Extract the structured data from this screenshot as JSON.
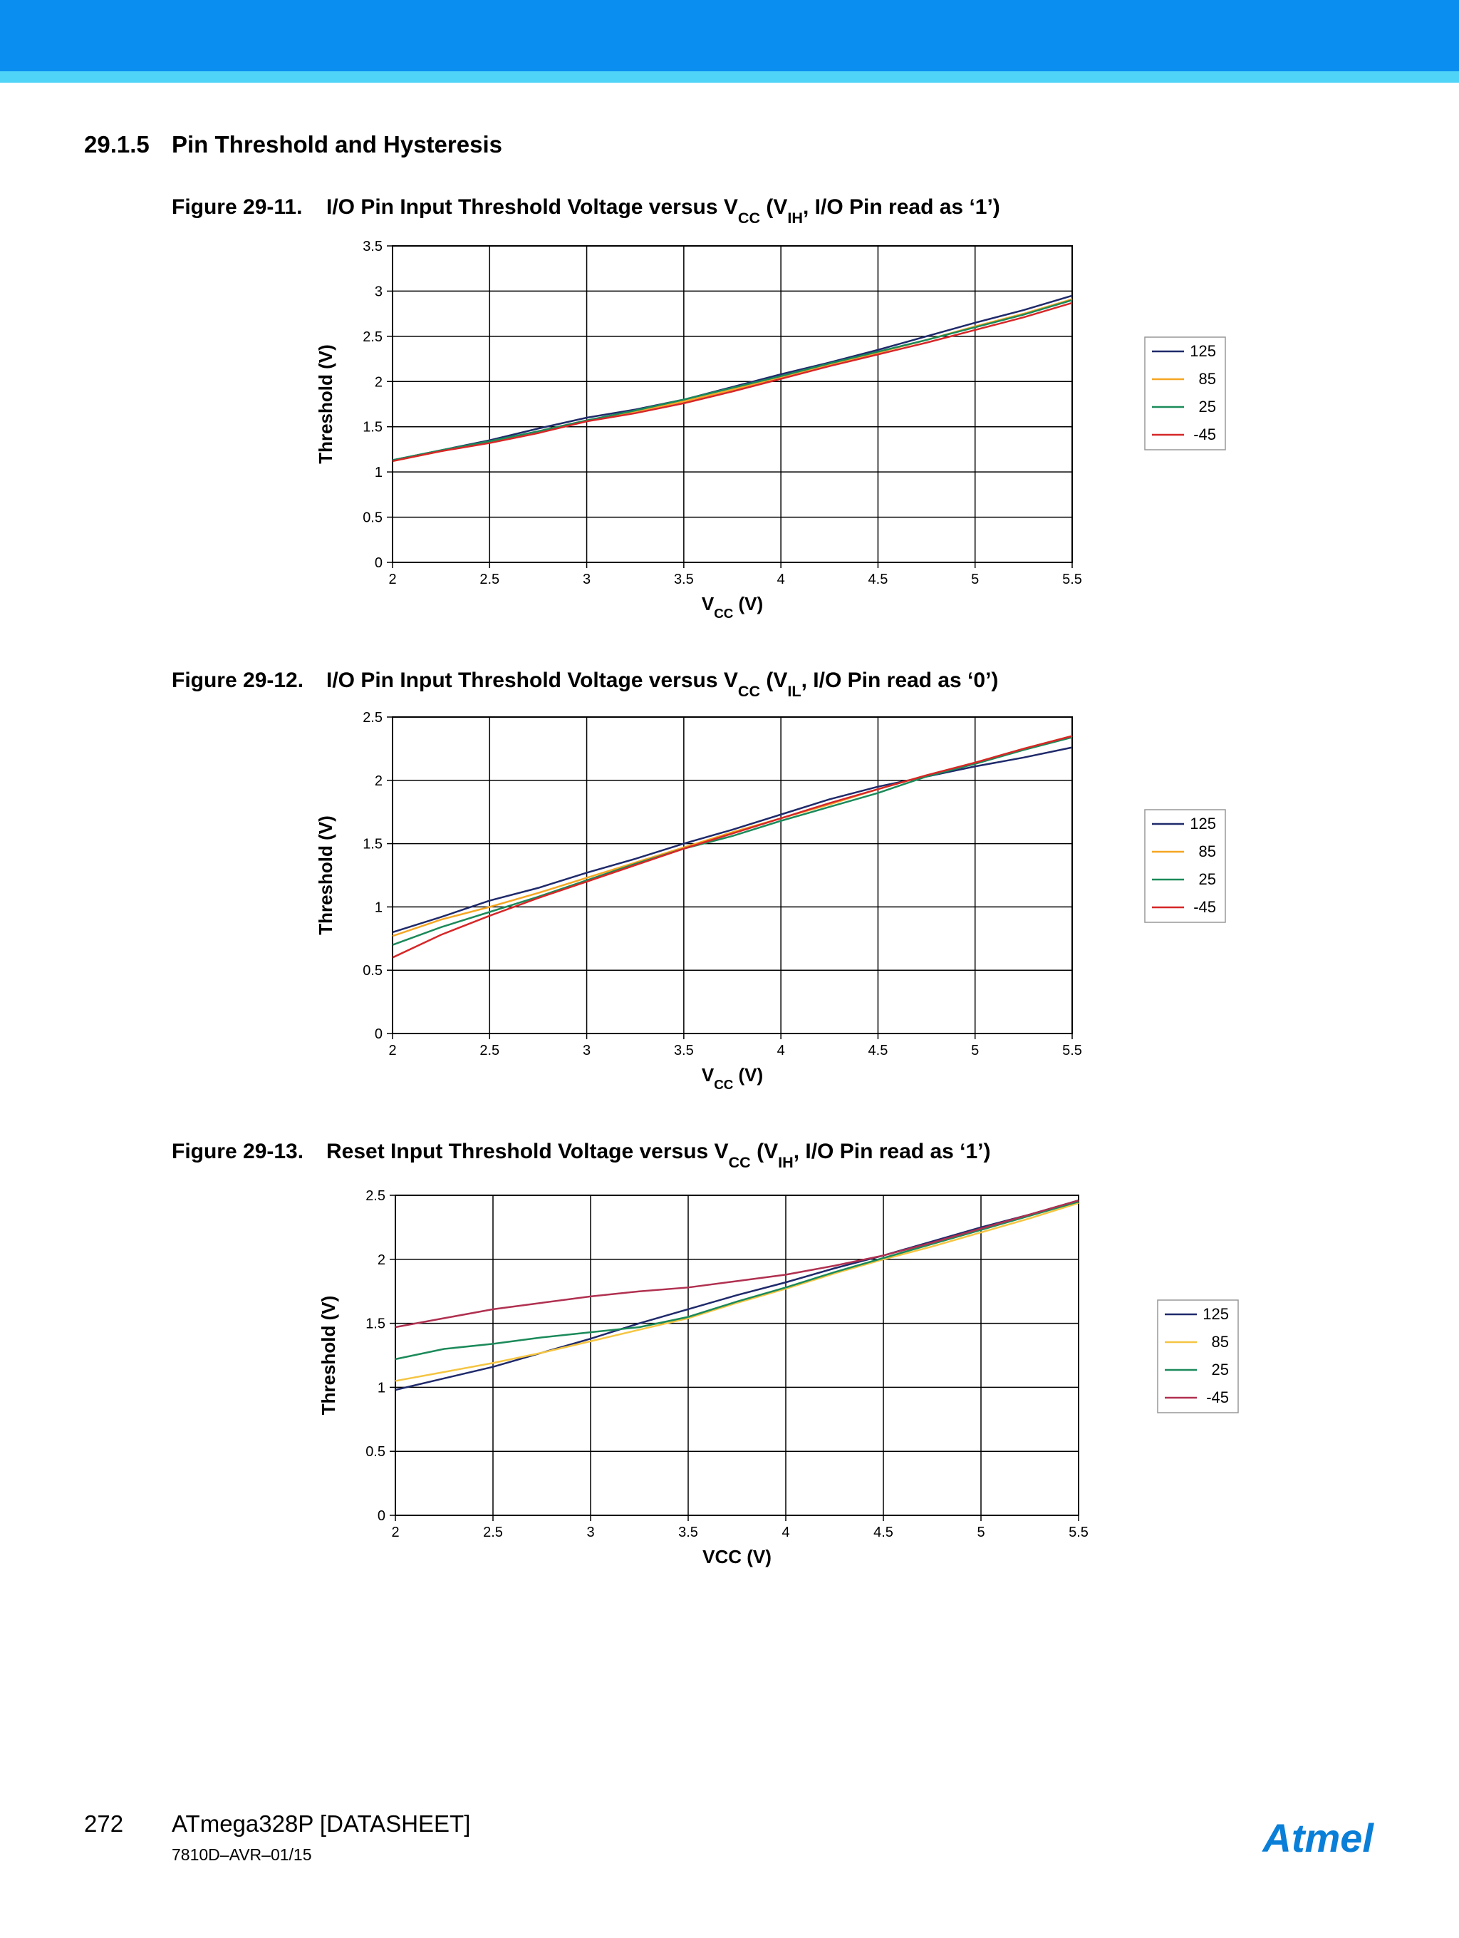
{
  "section": {
    "number": "29.1.5",
    "title": "Pin Threshold and Hysteresis"
  },
  "chart_data": [
    {
      "type": "line",
      "figure": "Figure 29-11.",
      "title_parts": [
        "I/O Pin Input Threshold Voltage versus V",
        "CC",
        " (V",
        "IH",
        ", I/O Pin read as ‘1’)"
      ],
      "xlabel_parts": [
        "V",
        "CC",
        " (V)"
      ],
      "ylabel": "Threshold (V)",
      "x": [
        2,
        2.25,
        2.5,
        2.75,
        3,
        3.25,
        3.5,
        3.75,
        4,
        4.25,
        4.5,
        4.75,
        5,
        5.25,
        5.5
      ],
      "series": [
        {
          "name": "125",
          "color": "#1f2a6b",
          "values": [
            1.13,
            1.24,
            1.35,
            1.48,
            1.6,
            1.69,
            1.8,
            1.94,
            2.08,
            2.21,
            2.35,
            2.5,
            2.65,
            2.79,
            2.95
          ]
        },
        {
          "name": "85",
          "color": "#f5a623",
          "values": [
            1.12,
            1.23,
            1.33,
            1.45,
            1.57,
            1.67,
            1.78,
            1.91,
            2.05,
            2.19,
            2.32,
            2.46,
            2.61,
            2.75,
            2.91
          ]
        },
        {
          "name": "25",
          "color": "#1b8a5a",
          "values": [
            1.13,
            1.24,
            1.34,
            1.45,
            1.57,
            1.68,
            1.8,
            1.93,
            2.06,
            2.2,
            2.33,
            2.46,
            2.6,
            2.74,
            2.9
          ]
        },
        {
          "name": "-45",
          "color": "#d62728",
          "values": [
            1.12,
            1.23,
            1.32,
            1.43,
            1.56,
            1.65,
            1.76,
            1.89,
            2.03,
            2.17,
            2.3,
            2.43,
            2.57,
            2.71,
            2.87
          ]
        }
      ],
      "xlim": [
        2,
        5.5
      ],
      "xticks": [
        2,
        2.5,
        3,
        3.5,
        4,
        4.5,
        5,
        5.5
      ],
      "ylim": [
        0,
        3.5
      ],
      "yticks": [
        0,
        0.5,
        1,
        1.5,
        2,
        2.5,
        3,
        3.5
      ],
      "grid": true,
      "legend": "right"
    },
    {
      "type": "line",
      "figure": "Figure 29-12.",
      "title_parts": [
        "I/O Pin Input Threshold Voltage versus V",
        "CC",
        " (V",
        "IL",
        ", I/O Pin read as ‘0’)"
      ],
      "xlabel_parts": [
        "V",
        "CC",
        " (V)"
      ],
      "ylabel": "Threshold (V)",
      "x": [
        2,
        2.25,
        2.5,
        2.75,
        3,
        3.25,
        3.5,
        3.75,
        4,
        4.25,
        4.5,
        4.75,
        5,
        5.25,
        5.5
      ],
      "series": [
        {
          "name": "125",
          "color": "#1f2a6b",
          "values": [
            0.8,
            0.92,
            1.05,
            1.15,
            1.27,
            1.38,
            1.5,
            1.61,
            1.73,
            1.85,
            1.95,
            2.03,
            2.11,
            2.18,
            2.26
          ]
        },
        {
          "name": "85",
          "color": "#f5a623",
          "values": [
            0.77,
            0.9,
            1.0,
            1.11,
            1.23,
            1.35,
            1.47,
            1.59,
            1.7,
            1.81,
            1.93,
            2.04,
            2.14,
            2.25,
            2.35
          ]
        },
        {
          "name": "25",
          "color": "#1b8a5a",
          "values": [
            0.7,
            0.84,
            0.96,
            1.08,
            1.21,
            1.34,
            1.46,
            1.56,
            1.68,
            1.79,
            1.9,
            2.03,
            2.13,
            2.24,
            2.34
          ]
        },
        {
          "name": "-45",
          "color": "#d62728",
          "values": [
            0.6,
            0.78,
            0.93,
            1.07,
            1.2,
            1.33,
            1.46,
            1.58,
            1.7,
            1.82,
            1.93,
            2.04,
            2.14,
            2.25,
            2.35
          ]
        }
      ],
      "xlim": [
        2,
        5.5
      ],
      "xticks": [
        2,
        2.5,
        3,
        3.5,
        4,
        4.5,
        5,
        5.5
      ],
      "ylim": [
        0,
        2.5
      ],
      "yticks": [
        0,
        0.5,
        1,
        1.5,
        2,
        2.5
      ],
      "grid": true,
      "legend": "right"
    },
    {
      "type": "line",
      "figure": "Figure 29-13.",
      "title_parts": [
        "Reset Input Threshold Voltage versus V",
        "CC",
        " (V",
        "IH",
        ", I/O Pin read as ‘1’)"
      ],
      "xlabel_parts": [
        "VCC (V)"
      ],
      "ylabel": "Threshold (V)",
      "x": [
        2,
        2.25,
        2.5,
        2.75,
        3,
        3.25,
        3.5,
        3.75,
        4,
        4.25,
        4.5,
        4.75,
        5,
        5.25,
        5.5
      ],
      "series": [
        {
          "name": "125",
          "color": "#1f2a6b",
          "values": [
            0.98,
            1.07,
            1.16,
            1.27,
            1.38,
            1.5,
            1.61,
            1.72,
            1.82,
            1.93,
            2.03,
            2.14,
            2.25,
            2.35,
            2.46
          ]
        },
        {
          "name": "85",
          "color": "#f5c542",
          "values": [
            1.05,
            1.12,
            1.19,
            1.27,
            1.36,
            1.45,
            1.54,
            1.66,
            1.77,
            1.89,
            2.0,
            2.1,
            2.21,
            2.32,
            2.44
          ]
        },
        {
          "name": "25",
          "color": "#1b8a5a",
          "values": [
            1.22,
            1.3,
            1.34,
            1.39,
            1.43,
            1.47,
            1.55,
            1.67,
            1.78,
            1.9,
            2.01,
            2.12,
            2.23,
            2.34,
            2.45
          ]
        },
        {
          "name": "-45",
          "color": "#b03050",
          "values": [
            1.47,
            1.54,
            1.61,
            1.66,
            1.71,
            1.75,
            1.78,
            1.83,
            1.88,
            1.95,
            2.03,
            2.13,
            2.24,
            2.35,
            2.46
          ]
        }
      ],
      "xlim": [
        2,
        5.5
      ],
      "xticks": [
        2,
        2.5,
        3,
        3.5,
        4,
        4.5,
        5,
        5.5
      ],
      "ylim": [
        0,
        2.5
      ],
      "yticks": [
        0,
        0.5,
        1,
        1.5,
        2,
        2.5
      ],
      "grid": true,
      "legend": "right"
    }
  ],
  "footer": {
    "page": "272",
    "document": "ATmega328P [DATASHEET]",
    "code": "7810D–AVR–01/15",
    "logo": "Atmel"
  }
}
